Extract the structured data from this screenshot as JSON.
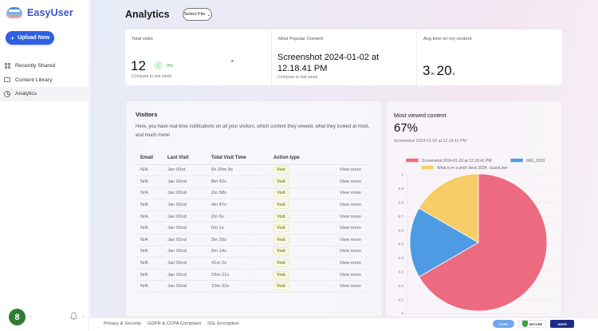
{
  "app": {
    "name": "EasyUser",
    "brand_color": "#3b55c9"
  },
  "sidebar": {
    "upload_button": {
      "icon": "plus-icon",
      "label": "Upload New"
    },
    "items": [
      {
        "label": "Recently Shared",
        "icon": "grid-icon",
        "active": false
      },
      {
        "label": "Content Library",
        "icon": "folder-icon",
        "active": false
      },
      {
        "label": "Analytics",
        "icon": "chart-icon",
        "active": true
      }
    ],
    "avatar": {
      "initial": "8",
      "color": "#2e7d32"
    },
    "notifications_icon": "bell-icon"
  },
  "header": {
    "title": "Analytics",
    "select_file": {
      "label": "Select File",
      "icon": "chevron-down-icon"
    }
  },
  "stats": {
    "total_visits": {
      "label": "Total visits",
      "value": "12",
      "trend": "0%",
      "trend_icon": "arrow-up-icon",
      "compare": "Compare to last week"
    },
    "most_popular": {
      "label": "Most Popular Content",
      "value": "Screenshot 2024-01-02 at 12.18.41 PM",
      "compare": "Compare to last week"
    },
    "avg_time": {
      "label": "Avg time on my content",
      "minutes": "3",
      "minutes_unit": "m",
      "seconds": "20",
      "seconds_unit": "s"
    }
  },
  "visitors": {
    "title": "Visitors",
    "description": "Here, you have real-time notifications on all your visitors, which content they viewed, what they looked at most, and much more!",
    "columns": [
      "Email",
      "Last Visit",
      "Total Visit Time",
      "Action type"
    ],
    "rows": [
      {
        "email": "N/A",
        "last_visit": "Jan 03rd",
        "time": "6h 29m 8s",
        "action": "Visit",
        "link": "View more"
      },
      {
        "email": "N/A",
        "last_visit": "Jan 02nd",
        "time": "8m 42s",
        "action": "Visit",
        "link": "View more"
      },
      {
        "email": "N/A",
        "last_visit": "Jan 02nd",
        "time": "2m 58s",
        "action": "Visit",
        "link": "View more"
      },
      {
        "email": "N/A",
        "last_visit": "Jan 02nd",
        "time": "4m 47s",
        "action": "Visit",
        "link": "View more"
      },
      {
        "email": "N/A",
        "last_visit": "Jan 02nd",
        "time": "2m 6s",
        "action": "Visit",
        "link": "View more"
      },
      {
        "email": "N/A",
        "last_visit": "Jan 02nd",
        "time": "0m 1s",
        "action": "Visit",
        "link": "View more"
      },
      {
        "email": "N/A",
        "last_visit": "Jan 02nd",
        "time": "3m 20s",
        "action": "Visit",
        "link": "View more"
      },
      {
        "email": "N/A",
        "last_visit": "Jan 02nd",
        "time": "0m 14s",
        "action": "Visit",
        "link": "View more"
      },
      {
        "email": "N/A",
        "last_visit": "Jan 02nd",
        "time": "41m 2s",
        "action": "Visit",
        "link": "View more"
      },
      {
        "email": "N/A",
        "last_visit": "Jan 02nd",
        "time": "29m 21s",
        "action": "Visit",
        "link": "View more"
      },
      {
        "email": "N/A",
        "last_visit": "Jan 02nd",
        "time": "10m 32s",
        "action": "Visit",
        "link": "View more"
      }
    ]
  },
  "most_viewed": {
    "title": "Most viewed content",
    "percent": "67%",
    "subtitle": "Screenshot 2024-01-02 at 12.18.41 PM"
  },
  "chart_data": {
    "type": "pie",
    "title": "",
    "categories": [
      "Screenshot 2024-01-02 at 12.18.41 PM",
      "IMG_0019",
      "What is in a pitch deck 2024 - EasyUser"
    ],
    "values": [
      0.667,
      0.167,
      0.167
    ],
    "colors": [
      "#ec6b80",
      "#4f9be3",
      "#f7cd67"
    ],
    "legend_position": "top",
    "yticks": [
      "0",
      "0.1",
      "0.2",
      "0.3",
      "0.4",
      "0.5",
      "0.6",
      "0.7",
      "0.8",
      "0.9",
      "1"
    ],
    "ylim": [
      0,
      1
    ],
    "grid": true
  },
  "footer": {
    "links": [
      "Privacy & Security",
      "GDPR & CCPA Compliant",
      "SSL Encryption"
    ],
    "badges": [
      "CCPA",
      "SECURE",
      "GDPR"
    ]
  }
}
